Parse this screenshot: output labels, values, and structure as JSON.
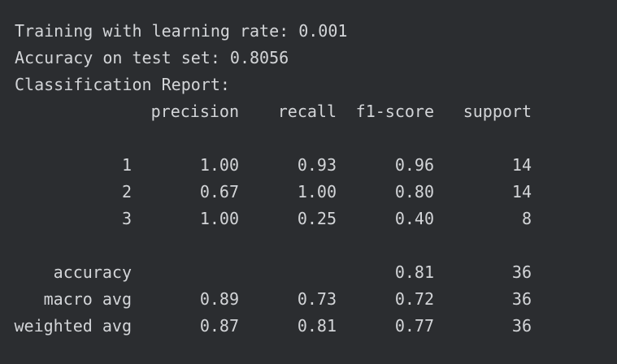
{
  "console": {
    "line_training": "Training with learning rate: 0.001",
    "line_accuracy": "Accuracy on test set: 0.8056",
    "line_report": "Classification Report:"
  },
  "report": {
    "headers": {
      "precision": "precision",
      "recall": "recall",
      "f1": "f1-score",
      "support": "support"
    },
    "rows": [
      {
        "label": "1",
        "precision": "1.00",
        "recall": "0.93",
        "f1": "0.96",
        "support": "14"
      },
      {
        "label": "2",
        "precision": "0.67",
        "recall": "1.00",
        "f1": "0.80",
        "support": "14"
      },
      {
        "label": "3",
        "precision": "1.00",
        "recall": "0.25",
        "f1": "0.40",
        "support": "8"
      }
    ],
    "summary": [
      {
        "label": "accuracy",
        "precision": "",
        "recall": "",
        "f1": "0.81",
        "support": "36"
      },
      {
        "label": "macro avg",
        "precision": "0.89",
        "recall": "0.73",
        "f1": "0.72",
        "support": "36"
      },
      {
        "label": "weighted avg",
        "precision": "0.87",
        "recall": "0.81",
        "f1": "0.77",
        "support": "36"
      }
    ]
  },
  "colors": {
    "background": "#2b2d30",
    "text": "#d3d5d8"
  }
}
